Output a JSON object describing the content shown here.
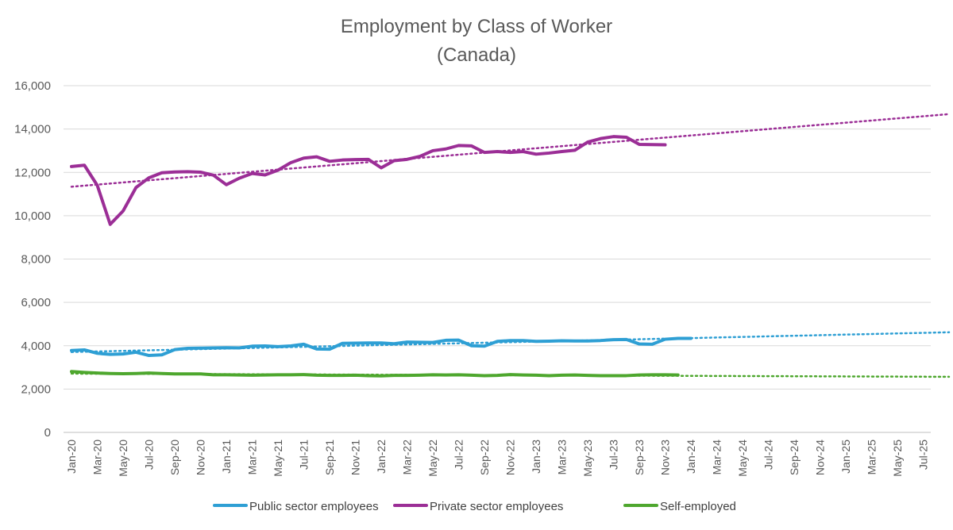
{
  "chart_data": {
    "type": "line",
    "title": "Employment by Class of Worker",
    "subtitle": "(Canada)",
    "xlabel": "",
    "ylabel": "",
    "ylim": [
      0,
      16000
    ],
    "yticks": [
      0,
      2000,
      4000,
      6000,
      8000,
      10000,
      12000,
      14000,
      16000
    ],
    "ytick_labels": [
      "0",
      "2,000",
      "4,000",
      "6,000",
      "8,000",
      "10,000",
      "12,000",
      "14,000",
      "16,000"
    ],
    "x_start": "Jan-20",
    "x_end": "Sep-25",
    "xtick_labels": [
      "Jan-20",
      "Mar-20",
      "May-20",
      "Jul-20",
      "Sep-20",
      "Nov-20",
      "Jan-21",
      "Mar-21",
      "May-21",
      "Jul-21",
      "Sep-21",
      "Nov-21",
      "Jan-22",
      "Mar-22",
      "May-22",
      "Jul-22",
      "Sep-22",
      "Nov-22",
      "Jan-23",
      "Mar-23",
      "May-23",
      "Jul-23",
      "Sep-23",
      "Nov-23",
      "Jan-24",
      "Mar-24",
      "May-24",
      "Jul-24",
      "Sep-24",
      "Nov-24",
      "Jan-25",
      "Mar-25",
      "May-25",
      "Jul-25"
    ],
    "grid": true,
    "legend": "bottom",
    "trendlines": "linear, dotted, extended to Sep-25",
    "series": [
      {
        "name": "Public sector employees",
        "color": "#2E9FD4",
        "values": [
          3780,
          3810,
          3650,
          3600,
          3620,
          3700,
          3550,
          3580,
          3820,
          3880,
          3890,
          3900,
          3910,
          3900,
          3980,
          3990,
          3960,
          3990,
          4070,
          3850,
          3840,
          4110,
          4120,
          4130,
          4130,
          4090,
          4170,
          4160,
          4150,
          4250,
          4260,
          4000,
          3980,
          4200,
          4240,
          4240,
          4200,
          4210,
          4230,
          4220,
          4220,
          4240,
          4280,
          4290,
          4080,
          4070,
          4300,
          4340,
          4340
        ]
      },
      {
        "name": "Private sector employees",
        "color": "#9B2E96",
        "values": [
          12270,
          12330,
          11400,
          9600,
          10220,
          11300,
          11750,
          11980,
          12020,
          12030,
          12010,
          11870,
          11430,
          11730,
          11950,
          11880,
          12100,
          12450,
          12660,
          12720,
          12510,
          12570,
          12590,
          12600,
          12210,
          12540,
          12600,
          12740,
          13000,
          13080,
          13240,
          13220,
          12920,
          12960,
          12920,
          12960,
          12840,
          12890,
          12960,
          13020,
          13400,
          13560,
          13650,
          13620,
          13290,
          13280,
          13270
        ]
      },
      {
        "name": "Self-employed",
        "color": "#4EA72E",
        "values": [
          2810,
          2770,
          2740,
          2720,
          2710,
          2720,
          2740,
          2720,
          2700,
          2700,
          2700,
          2660,
          2660,
          2650,
          2640,
          2650,
          2660,
          2660,
          2670,
          2640,
          2630,
          2630,
          2640,
          2620,
          2610,
          2630,
          2630,
          2640,
          2660,
          2650,
          2660,
          2640,
          2620,
          2630,
          2670,
          2650,
          2640,
          2620,
          2640,
          2650,
          2630,
          2620,
          2620,
          2620,
          2650,
          2660,
          2660,
          2650
        ]
      }
    ]
  },
  "legend": {
    "items": [
      {
        "label": "Public sector employees",
        "color": "#2E9FD4"
      },
      {
        "label": "Private sector employees",
        "color": "#9B2E96"
      },
      {
        "label": "Self-employed",
        "color": "#4EA72E"
      }
    ]
  }
}
